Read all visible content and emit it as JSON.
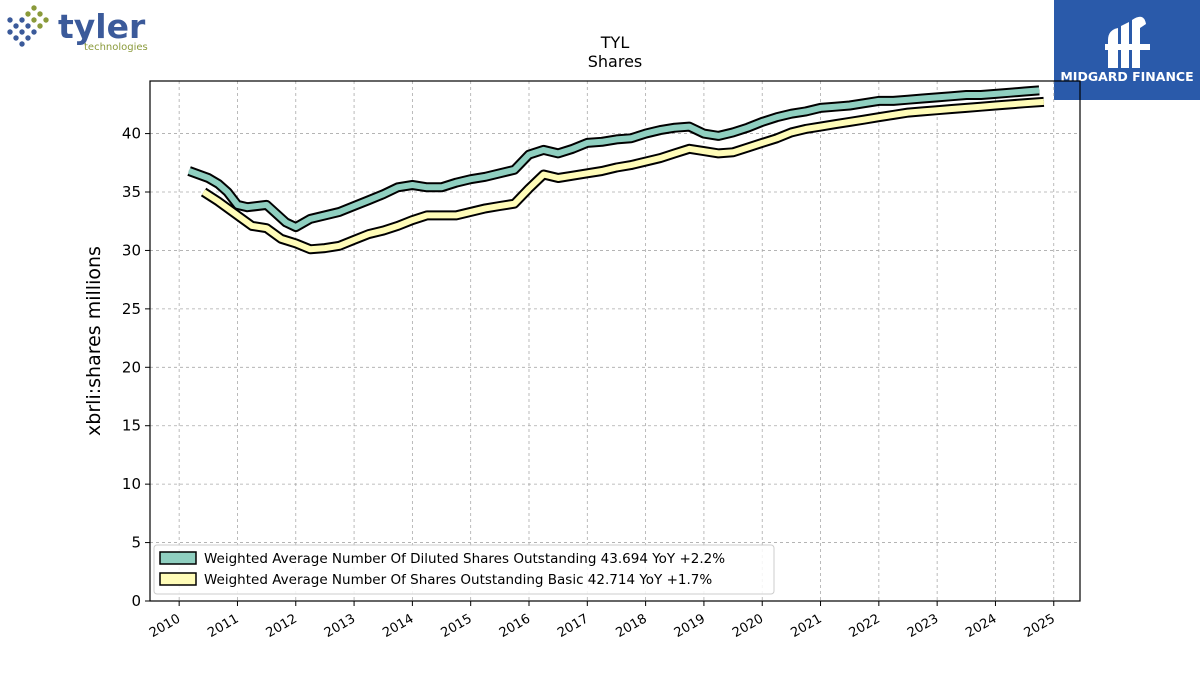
{
  "brand_logo": {
    "name": "tyler",
    "subtitle": "technologies",
    "color": "#3b5a9a",
    "dot_colors": [
      "#3b5a9a",
      "#8a9a3a"
    ]
  },
  "watermark": {
    "text": "MIDGARD FINANCE",
    "background": "#2a5aaa"
  },
  "chart_data": {
    "type": "line",
    "title": "TYL",
    "subtitle": "Shares",
    "ylabel": "xbrli:shares millions",
    "xlabel": "",
    "ylim": [
      0,
      44.5
    ],
    "xlim": [
      2009.5,
      2025.45
    ],
    "yticks": [
      0,
      5,
      10,
      15,
      20,
      25,
      30,
      35,
      40
    ],
    "xticks": [
      "2010",
      "2011",
      "2012",
      "2013",
      "2014",
      "2015",
      "2016",
      "2017",
      "2018",
      "2019",
      "2020",
      "2021",
      "2022",
      "2023",
      "2024",
      "2025"
    ],
    "grid": true,
    "legend_position": "lower-left",
    "series": [
      {
        "name": "Weighted Average Number Of Diluted Shares Outstanding",
        "legend_label": "Weighted Average Number Of Diluted Shares Outstanding  43.694 YoY +2.2%",
        "color": "#8fcfc0",
        "x": [
          2010.17,
          2010.5,
          2010.67,
          2010.83,
          2011.0,
          2011.17,
          2011.5,
          2011.83,
          2012.0,
          2012.25,
          2012.5,
          2012.75,
          2013.0,
          2013.25,
          2013.5,
          2013.75,
          2014.0,
          2014.25,
          2014.5,
          2014.75,
          2015.0,
          2015.25,
          2015.5,
          2015.75,
          2016.0,
          2016.25,
          2016.5,
          2016.75,
          2017.0,
          2017.25,
          2017.5,
          2017.75,
          2018.0,
          2018.25,
          2018.5,
          2018.75,
          2019.0,
          2019.25,
          2019.5,
          2019.75,
          2020.0,
          2020.25,
          2020.5,
          2020.75,
          2021.0,
          2021.25,
          2021.5,
          2021.75,
          2022.0,
          2022.25,
          2022.5,
          2022.75,
          2023.0,
          2023.25,
          2023.5,
          2023.75,
          2024.0,
          2024.25,
          2024.5,
          2024.75
        ],
        "values": [
          36.8,
          36.2,
          35.7,
          35.0,
          33.9,
          33.7,
          33.9,
          32.4,
          32.0,
          32.7,
          33.0,
          33.3,
          33.8,
          34.3,
          34.8,
          35.4,
          35.6,
          35.4,
          35.4,
          35.8,
          36.1,
          36.3,
          36.6,
          36.9,
          38.2,
          38.6,
          38.3,
          38.7,
          39.2,
          39.3,
          39.5,
          39.6,
          40.0,
          40.3,
          40.5,
          40.6,
          40.0,
          39.8,
          40.1,
          40.5,
          41.0,
          41.4,
          41.7,
          41.9,
          42.2,
          42.3,
          42.4,
          42.6,
          42.8,
          42.8,
          42.9,
          43.0,
          43.1,
          43.2,
          43.3,
          43.3,
          43.4,
          43.5,
          43.6,
          43.694
        ]
      },
      {
        "name": "Weighted Average Number Of Shares Outstanding Basic",
        "legend_label": "Weighted Average Number Of Shares Outstanding Basic  42.714 YoY +1.7%",
        "color": "#fffcb8",
        "x": [
          2010.42,
          2010.67,
          2011.0,
          2011.25,
          2011.5,
          2011.75,
          2012.0,
          2012.25,
          2012.5,
          2012.75,
          2013.0,
          2013.25,
          2013.5,
          2013.75,
          2014.0,
          2014.25,
          2014.5,
          2014.75,
          2015.0,
          2015.25,
          2015.5,
          2015.75,
          2016.0,
          2016.25,
          2016.5,
          2016.75,
          2017.0,
          2017.25,
          2017.5,
          2017.75,
          2018.0,
          2018.25,
          2018.5,
          2018.75,
          2019.0,
          2019.25,
          2019.5,
          2019.75,
          2020.0,
          2020.25,
          2020.5,
          2020.75,
          2021.0,
          2021.25,
          2021.5,
          2021.75,
          2022.0,
          2022.25,
          2022.5,
          2022.75,
          2023.0,
          2023.25,
          2023.5,
          2023.75,
          2024.0,
          2024.25,
          2024.5,
          2024.83
        ],
        "values": [
          35.0,
          34.2,
          33.0,
          32.1,
          31.9,
          31.0,
          30.6,
          30.1,
          30.2,
          30.4,
          30.9,
          31.4,
          31.7,
          32.1,
          32.6,
          33.0,
          33.0,
          33.0,
          33.3,
          33.6,
          33.8,
          34.0,
          35.3,
          36.5,
          36.2,
          36.4,
          36.6,
          36.8,
          37.1,
          37.3,
          37.6,
          37.9,
          38.3,
          38.7,
          38.5,
          38.3,
          38.4,
          38.8,
          39.2,
          39.6,
          40.1,
          40.4,
          40.6,
          40.8,
          41.0,
          41.2,
          41.4,
          41.6,
          41.8,
          41.9,
          42.0,
          42.1,
          42.2,
          42.3,
          42.4,
          42.5,
          42.6,
          42.714
        ]
      }
    ]
  }
}
